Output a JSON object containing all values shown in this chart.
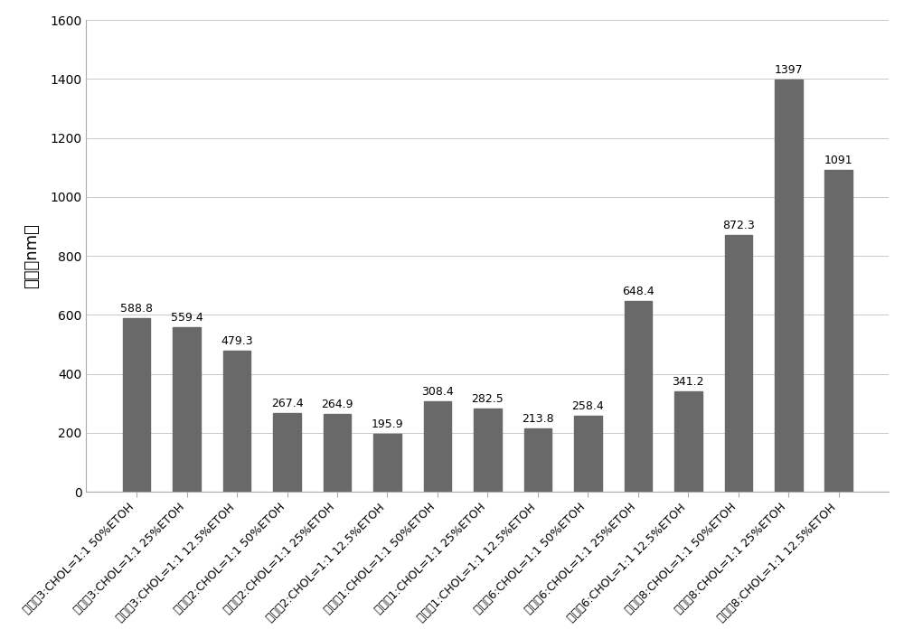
{
  "categories": [
    "化合物3:CHOL=1:1 50%ETOH",
    "化合物3:CHOL=1:1 25%ETOH",
    "化合物3:CHOL=1:1 12.5%ETOH",
    "化合物2:CHOL=1:1 50%ETOH",
    "化合物2:CHOL=1:1 25%ETOH",
    "化合物2:CHOL=1:1 12.5%ETOH",
    "化合物1:CHOL=1:1 50%ETOH",
    "化合物1:CHOL=1:1 25%ETOH",
    "化合物1:CHOL=1:1 12.5%ETOH",
    "化合物6:CHOL=1:1 50%ETOH",
    "化合物6:CHOL=1:1 25%ETOH",
    "化合物6:CHOL=1:1 12.5%ETOH",
    "化合物8:CHOL=1:1 50%ETOH",
    "化合物8:CHOL=1:1 25%ETOH",
    "化合物8:CHOL=1:1 12.5%ETOH"
  ],
  "values": [
    588.8,
    559.4,
    479.3,
    267.4,
    264.9,
    195.9,
    308.4,
    282.5,
    213.8,
    258.4,
    648.4,
    341.2,
    872.3,
    1397.0,
    1091.0
  ],
  "bar_color": "#696969",
  "ylabel": "粒径（nm）",
  "ylim": [
    0,
    1600
  ],
  "yticks": [
    0,
    200,
    400,
    600,
    800,
    1000,
    1200,
    1400,
    1600
  ],
  "grid_color": "#c8c8c8",
  "label_fontsize": 9.0,
  "value_fontsize": 9.0,
  "ylabel_fontsize": 13,
  "bar_width": 0.55,
  "background_color": "#ffffff",
  "border_color": "#aaaaaa"
}
